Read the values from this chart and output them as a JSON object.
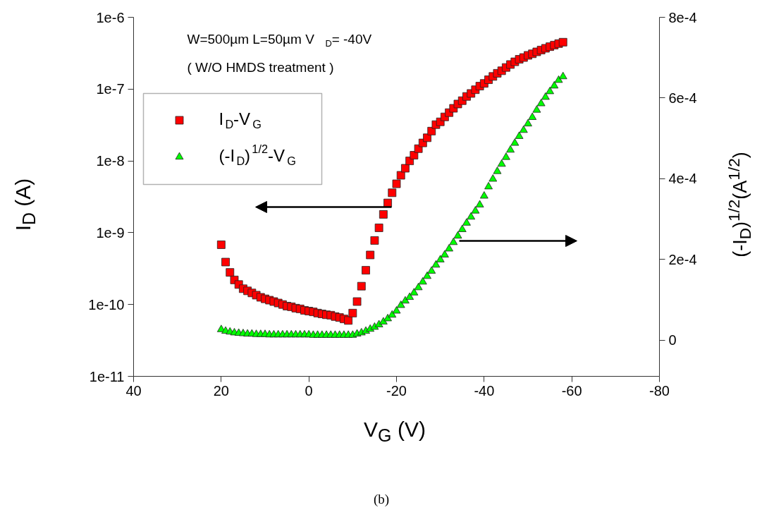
{
  "chart_data": {
    "type": "scatter",
    "xlabel": "V$_{G}$ (V)",
    "ylabel": "I$_{D}$ (A)",
    "y2label": "(-I$_{D}$)$^{1/2}$(A$^{1/2}$)",
    "annotations": [
      "W=500µm  L=50µm  V$_{D}$= -40V",
      "( W/O HMDS treatment )",
      "(b)"
    ],
    "x": [
      20,
      19,
      18,
      17,
      16,
      15,
      14,
      13,
      12,
      11,
      10,
      9,
      8,
      7,
      6,
      5,
      4,
      3,
      2,
      1,
      0,
      -1,
      -2,
      -3,
      -4,
      -5,
      -6,
      -7,
      -8,
      -9,
      -10,
      -11,
      -12,
      -13,
      -14,
      -15,
      -16,
      -17,
      -18,
      -19,
      -20,
      -21,
      -22,
      -23,
      -24,
      -25,
      -26,
      -27,
      -28,
      -29,
      -30,
      -31,
      -32,
      -33,
      -34,
      -35,
      -36,
      -37,
      -38,
      -39,
      -40,
      -41,
      -42,
      -43,
      -44,
      -45,
      -46,
      -47,
      -48,
      -49,
      -50,
      -51,
      -52,
      -53,
      -54,
      -55,
      -56,
      -57,
      -58
    ],
    "series": [
      {
        "name": "I$_{D}$-V$_{G}$",
        "color": "#ff0000",
        "marker": "square",
        "values": [
          6.8e-10,
          3.9e-10,
          2.8e-10,
          2.2e-10,
          1.9e-10,
          1.66e-10,
          1.55e-10,
          1.45e-10,
          1.35e-10,
          1.26e-10,
          1.2e-10,
          1.15e-10,
          1.1e-10,
          1.05e-10,
          1e-10,
          9.5e-11,
          9.3e-11,
          8.9e-11,
          8.7e-11,
          8.3e-11,
          8.1e-11,
          7.9e-11,
          7.6e-11,
          7.4e-11,
          7.2e-11,
          7.1e-11,
          6.8e-11,
          6.6e-11,
          6.3e-11,
          6e-11,
          7.6e-11,
          1.1e-10,
          1.8e-10,
          3e-10,
          4.9e-10,
          7.8e-10,
          1.17e-09,
          1.8e-09,
          2.6e-09,
          3.6e-09,
          4.8e-09,
          6.3e-09,
          7.9e-09,
          1e-08,
          1.2e-08,
          1.48e-08,
          1.78e-08,
          2.1e-08,
          2.6e-08,
          3.2e-08,
          3.5e-08,
          4.1e-08,
          4.7e-08,
          5.4e-08,
          6.2e-08,
          6.9e-08,
          7.9e-08,
          8.7e-08,
          9.8e-08,
          1.1e-07,
          1.2e-07,
          1.35e-07,
          1.5e-07,
          1.66e-07,
          1.8e-07,
          2e-07,
          2.2e-07,
          2.4e-07,
          2.6e-07,
          2.75e-07,
          2.95e-07,
          3.1e-07,
          3.3e-07,
          3.5e-07,
          3.7e-07,
          3.9e-07,
          4.1e-07,
          4.3e-07,
          4.5e-07
        ]
      },
      {
        "name": "(-I$_{D}$)$^{1/2}$-V$_{G}$",
        "color": "#00ff00",
        "marker": "triangle",
        "axis": "y2",
        "values": [
          2.6e-05,
          2.2e-05,
          2e-05,
          1.8e-05,
          1.7e-05,
          1.6e-05,
          1.5e-05,
          1.5e-05,
          1.4e-05,
          1.4e-05,
          1.4e-05,
          1.3e-05,
          1.3e-05,
          1.3e-05,
          1.3e-05,
          1.3e-05,
          1.3e-05,
          1.3e-05,
          1.3e-05,
          1.3e-05,
          1.3e-05,
          1.2e-05,
          1.2e-05,
          1.2e-05,
          1.2e-05,
          1.2e-05,
          1.2e-05,
          1.2e-05,
          1.2e-05,
          1.2e-05,
          1.2e-05,
          1.5e-05,
          1.8e-05,
          2.2e-05,
          2.7e-05,
          3.2e-05,
          3.8e-05,
          4.5e-05,
          5.3e-05,
          6.2e-05,
          7.2e-05,
          8.6e-05,
          9.7e-05,
          0.000106,
          0.000117,
          0.00013,
          0.000144,
          0.000158,
          0.000171,
          0.000186,
          0.000199,
          0.000211,
          0.000226,
          0.000242,
          0.000258,
          0.000274,
          0.00029,
          0.000305,
          0.00032,
          0.000335,
          0.000357,
          0.00038,
          0.000399,
          0.000418,
          0.000436,
          0.000453,
          0.000471,
          0.000488,
          0.000505,
          0.00052,
          0.000536,
          0.000552,
          0.00057,
          0.000586,
          0.000602,
          0.000616,
          0.00063,
          0.000644,
          0.000653
        ]
      }
    ],
    "xlim": [
      40,
      -80
    ],
    "xticks": [
      40,
      20,
      0,
      -20,
      -40,
      -60,
      -80
    ],
    "log": "y",
    "ylim": [
      1e-11,
      1e-06
    ],
    "yticks": [
      {
        "value": 1e-11,
        "label": "1e-11"
      },
      {
        "value": 1e-10,
        "label": "1e-10"
      },
      {
        "value": 1e-09,
        "label": "1e-9"
      },
      {
        "value": 1e-08,
        "label": "1e-8"
      },
      {
        "value": 1e-07,
        "label": "1e-7"
      },
      {
        "value": 1e-06,
        "label": "1e-6"
      }
    ],
    "y2lim": [
      -9e-05,
      0.0008
    ],
    "y2ticks": [
      {
        "value": 0,
        "label": "0"
      },
      {
        "value": 0.0002,
        "label": "2e-4"
      },
      {
        "value": 0.0004,
        "label": "4e-4"
      },
      {
        "value": 0.0006,
        "label": "6e-4"
      },
      {
        "value": 0.0008,
        "label": "8e-4"
      }
    ],
    "legend": "top left",
    "grid": false
  }
}
